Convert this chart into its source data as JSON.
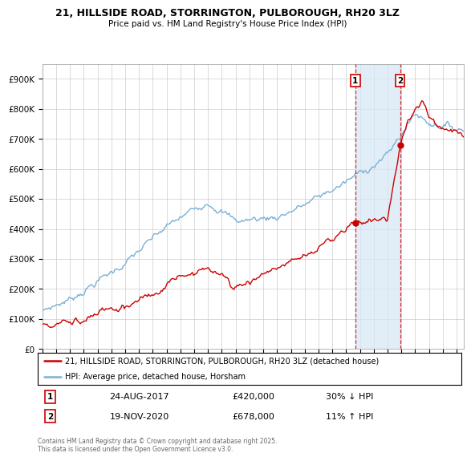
{
  "title1": "21, HILLSIDE ROAD, STORRINGTON, PULBOROUGH, RH20 3LZ",
  "title2": "Price paid vs. HM Land Registry's House Price Index (HPI)",
  "ylim": [
    0,
    950000
  ],
  "yticks": [
    0,
    100000,
    200000,
    300000,
    400000,
    500000,
    600000,
    700000,
    800000,
    900000
  ],
  "ytick_labels": [
    "£0",
    "£100K",
    "£200K",
    "£300K",
    "£400K",
    "£500K",
    "£600K",
    "£700K",
    "£800K",
    "£900K"
  ],
  "legend_line1": "21, HILLSIDE ROAD, STORRINGTON, PULBOROUGH, RH20 3LZ (detached house)",
  "legend_line2": "HPI: Average price, detached house, Horsham",
  "annotation1_label": "1",
  "annotation1_date": "24-AUG-2017",
  "annotation1_value": 420000,
  "annotation1_pct": "30% ↓ HPI",
  "annotation1_year": 2017.65,
  "annotation2_label": "2",
  "annotation2_date": "19-NOV-2020",
  "annotation2_value": 678000,
  "annotation2_pct": "11% ↑ HPI",
  "annotation2_year": 2020.9,
  "red_color": "#cc0000",
  "blue_color": "#7ab0d4",
  "shade_color": "#d6e8f5",
  "footer": "Contains HM Land Registry data © Crown copyright and database right 2025.\nThis data is licensed under the Open Government Licence v3.0.",
  "background_color": "#ffffff",
  "grid_color": "#cccccc"
}
